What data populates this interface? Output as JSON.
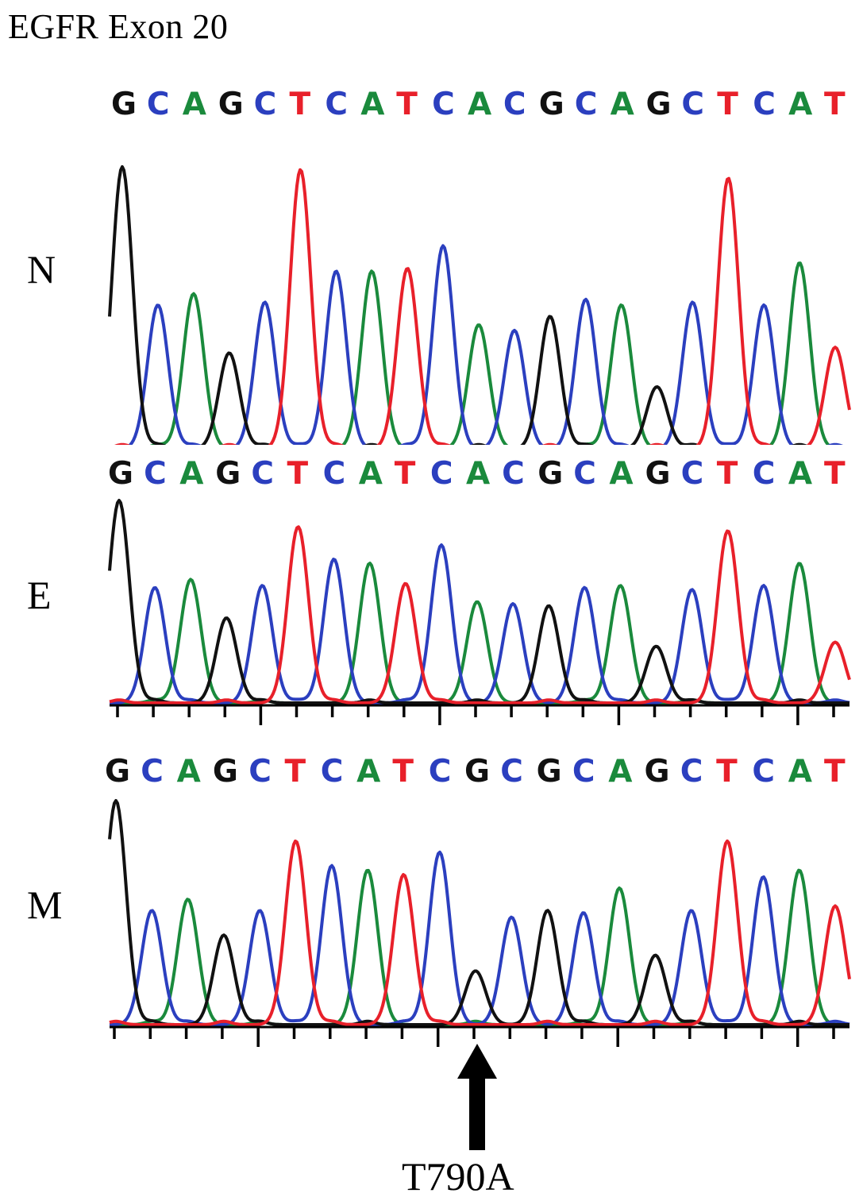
{
  "title": "EGFR Exon 20",
  "colors": {
    "A": "#1a8a3c",
    "C": "#2b3fbf",
    "G": "#111111",
    "T": "#e8202a"
  },
  "panels": [
    {
      "label": "N",
      "sequence": "GCAGCTCATCACGCAGCTCAT",
      "peaks": [
        [
          "G",
          1.0
        ],
        [
          "C",
          0.51
        ],
        [
          "A",
          0.55
        ],
        [
          "G",
          0.34
        ],
        [
          "C",
          0.52
        ],
        [
          "T",
          0.99
        ],
        [
          "C",
          0.63
        ],
        [
          "A",
          0.63
        ],
        [
          "T",
          0.64
        ],
        [
          "C",
          0.72
        ],
        [
          "A",
          0.44
        ],
        [
          "C",
          0.42
        ],
        [
          "G",
          0.47
        ],
        [
          "C",
          0.53
        ],
        [
          "A",
          0.51
        ],
        [
          "G",
          0.22
        ],
        [
          "C",
          0.52
        ],
        [
          "T",
          0.96
        ],
        [
          "C",
          0.51
        ],
        [
          "A",
          0.66
        ],
        [
          "T",
          0.36
        ]
      ]
    },
    {
      "label": "E",
      "sequence": "GCAGCTCATCACGCAGCTCAT",
      "peaks": [
        [
          "G",
          1.0
        ],
        [
          "C",
          0.57
        ],
        [
          "A",
          0.61
        ],
        [
          "G",
          0.42
        ],
        [
          "C",
          0.58
        ],
        [
          "T",
          0.87
        ],
        [
          "C",
          0.71
        ],
        [
          "A",
          0.69
        ],
        [
          "T",
          0.59
        ],
        [
          "C",
          0.78
        ],
        [
          "A",
          0.5
        ],
        [
          "C",
          0.49
        ],
        [
          "G",
          0.48
        ],
        [
          "C",
          0.57
        ],
        [
          "A",
          0.58
        ],
        [
          "G",
          0.28
        ],
        [
          "C",
          0.56
        ],
        [
          "T",
          0.85
        ],
        [
          "C",
          0.58
        ],
        [
          "A",
          0.69
        ],
        [
          "T",
          0.3
        ]
      ]
    },
    {
      "label": "M",
      "sequence": "GCAGCTCATCGCGCAGCTCAT",
      "peaks": [
        [
          "G",
          1.0
        ],
        [
          "C",
          0.51
        ],
        [
          "A",
          0.56
        ],
        [
          "G",
          0.4
        ],
        [
          "C",
          0.51
        ],
        [
          "T",
          0.82
        ],
        [
          "C",
          0.71
        ],
        [
          "A",
          0.69
        ],
        [
          "T",
          0.67
        ],
        [
          "C",
          0.77
        ],
        [
          "G",
          0.24
        ],
        [
          "C",
          0.48
        ],
        [
          "G",
          0.51
        ],
        [
          "C",
          0.5
        ],
        [
          "A",
          0.61
        ],
        [
          "G",
          0.31
        ],
        [
          "C",
          0.51
        ],
        [
          "T",
          0.82
        ],
        [
          "C",
          0.66
        ],
        [
          "A",
          0.69
        ],
        [
          "T",
          0.53
        ]
      ]
    }
  ],
  "annotation": {
    "label": "T790A"
  }
}
